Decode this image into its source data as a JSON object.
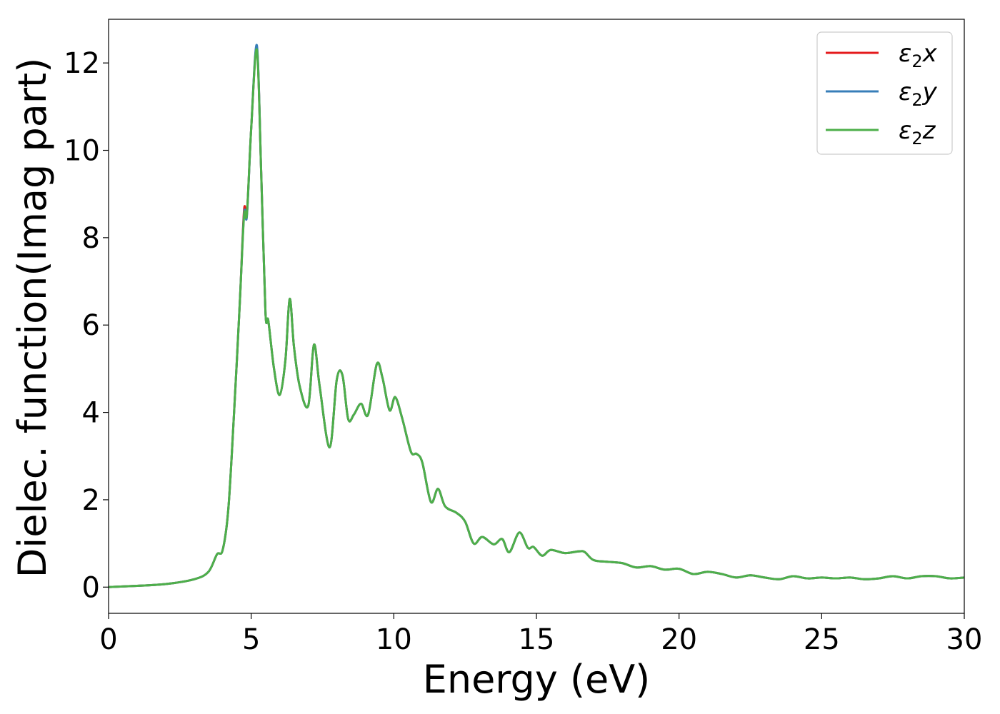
{
  "chart_data": {
    "type": "line",
    "title": "",
    "xlabel": "Energy (eV)",
    "ylabel": "Dielec. function(Imag part)",
    "xlim": [
      0,
      30
    ],
    "ylim": [
      -0.6,
      13
    ],
    "xticks": [
      0,
      5,
      10,
      15,
      20,
      25,
      30
    ],
    "yticks": [
      0,
      2,
      4,
      6,
      8,
      10,
      12
    ],
    "grid": false,
    "legend_position": "top-right",
    "series": [
      {
        "name": "ε₂x",
        "legend_base": "ε",
        "legend_sub": "2",
        "legend_var": "x",
        "color": "#e41a1c",
        "points": [
          [
            0,
            0
          ],
          [
            1,
            0.03
          ],
          [
            2,
            0.07
          ],
          [
            3,
            0.18
          ],
          [
            3.5,
            0.35
          ],
          [
            3.8,
            0.75
          ],
          [
            4.0,
            0.85
          ],
          [
            4.2,
            1.8
          ],
          [
            4.4,
            4.0
          ],
          [
            4.6,
            6.5
          ],
          [
            4.75,
            8.63
          ],
          [
            4.85,
            8.55
          ],
          [
            5.0,
            10.5
          ],
          [
            5.2,
            12.35
          ],
          [
            5.35,
            9.5
          ],
          [
            5.5,
            6.3
          ],
          [
            5.6,
            6.1
          ],
          [
            5.8,
            5.0
          ],
          [
            6.0,
            4.4
          ],
          [
            6.2,
            5.2
          ],
          [
            6.35,
            6.6
          ],
          [
            6.5,
            5.5
          ],
          [
            6.7,
            4.6
          ],
          [
            7.0,
            4.15
          ],
          [
            7.2,
            5.55
          ],
          [
            7.4,
            4.6
          ],
          [
            7.75,
            3.2
          ],
          [
            8.0,
            4.75
          ],
          [
            8.2,
            4.85
          ],
          [
            8.4,
            3.85
          ],
          [
            8.6,
            3.95
          ],
          [
            8.85,
            4.2
          ],
          [
            9.1,
            3.95
          ],
          [
            9.4,
            5.1
          ],
          [
            9.6,
            4.8
          ],
          [
            9.85,
            4.05
          ],
          [
            10.05,
            4.35
          ],
          [
            10.3,
            3.85
          ],
          [
            10.6,
            3.1
          ],
          [
            10.8,
            3.05
          ],
          [
            11.0,
            2.85
          ],
          [
            11.3,
            1.95
          ],
          [
            11.55,
            2.25
          ],
          [
            11.8,
            1.85
          ],
          [
            12.2,
            1.7
          ],
          [
            12.5,
            1.5
          ],
          [
            12.8,
            1.0
          ],
          [
            13.1,
            1.15
          ],
          [
            13.5,
            0.98
          ],
          [
            13.8,
            1.1
          ],
          [
            14.05,
            0.8
          ],
          [
            14.4,
            1.25
          ],
          [
            14.7,
            0.9
          ],
          [
            14.9,
            0.92
          ],
          [
            15.2,
            0.72
          ],
          [
            15.5,
            0.85
          ],
          [
            16.0,
            0.78
          ],
          [
            16.5,
            0.82
          ],
          [
            16.7,
            0.8
          ],
          [
            17.0,
            0.62
          ],
          [
            17.5,
            0.58
          ],
          [
            18.0,
            0.55
          ],
          [
            18.5,
            0.45
          ],
          [
            19.0,
            0.48
          ],
          [
            19.5,
            0.4
          ],
          [
            20.0,
            0.42
          ],
          [
            20.5,
            0.3
          ],
          [
            21.0,
            0.35
          ],
          [
            21.5,
            0.3
          ],
          [
            22.0,
            0.22
          ],
          [
            22.5,
            0.27
          ],
          [
            23.0,
            0.22
          ],
          [
            23.5,
            0.18
          ],
          [
            24.0,
            0.25
          ],
          [
            24.5,
            0.2
          ],
          [
            25.0,
            0.22
          ],
          [
            25.5,
            0.2
          ],
          [
            26.0,
            0.22
          ],
          [
            26.5,
            0.18
          ],
          [
            27.0,
            0.2
          ],
          [
            27.5,
            0.25
          ],
          [
            28.0,
            0.2
          ],
          [
            28.5,
            0.25
          ],
          [
            29.0,
            0.25
          ],
          [
            29.5,
            0.2
          ],
          [
            30.0,
            0.22
          ]
        ]
      },
      {
        "name": "ε₂y",
        "legend_base": "ε",
        "legend_sub": "2",
        "legend_var": "y",
        "color": "#377eb8",
        "points": [
          [
            0,
            0
          ],
          [
            1,
            0.03
          ],
          [
            2,
            0.07
          ],
          [
            3,
            0.18
          ],
          [
            3.5,
            0.35
          ],
          [
            3.8,
            0.75
          ],
          [
            4.0,
            0.85
          ],
          [
            4.2,
            1.8
          ],
          [
            4.4,
            4.0
          ],
          [
            4.6,
            6.5
          ],
          [
            4.75,
            8.55
          ],
          [
            4.85,
            8.5
          ],
          [
            5.0,
            10.5
          ],
          [
            5.2,
            12.4
          ],
          [
            5.35,
            9.5
          ],
          [
            5.5,
            6.3
          ],
          [
            5.6,
            6.1
          ],
          [
            5.8,
            5.0
          ],
          [
            6.0,
            4.4
          ],
          [
            6.2,
            5.2
          ],
          [
            6.35,
            6.6
          ],
          [
            6.5,
            5.5
          ],
          [
            6.7,
            4.6
          ],
          [
            7.0,
            4.15
          ],
          [
            7.2,
            5.55
          ],
          [
            7.4,
            4.6
          ],
          [
            7.75,
            3.2
          ],
          [
            8.0,
            4.75
          ],
          [
            8.2,
            4.85
          ],
          [
            8.4,
            3.85
          ],
          [
            8.6,
            3.95
          ],
          [
            8.85,
            4.2
          ],
          [
            9.1,
            3.95
          ],
          [
            9.4,
            5.1
          ],
          [
            9.6,
            4.8
          ],
          [
            9.85,
            4.05
          ],
          [
            10.05,
            4.35
          ],
          [
            10.3,
            3.85
          ],
          [
            10.6,
            3.1
          ],
          [
            10.8,
            3.05
          ],
          [
            11.0,
            2.85
          ],
          [
            11.3,
            1.95
          ],
          [
            11.55,
            2.25
          ],
          [
            11.8,
            1.85
          ],
          [
            12.2,
            1.7
          ],
          [
            12.5,
            1.5
          ],
          [
            12.8,
            1.0
          ],
          [
            13.1,
            1.15
          ],
          [
            13.5,
            0.98
          ],
          [
            13.8,
            1.1
          ],
          [
            14.05,
            0.8
          ],
          [
            14.4,
            1.25
          ],
          [
            14.7,
            0.9
          ],
          [
            14.9,
            0.92
          ],
          [
            15.2,
            0.72
          ],
          [
            15.5,
            0.85
          ],
          [
            16.0,
            0.78
          ],
          [
            16.5,
            0.82
          ],
          [
            16.7,
            0.8
          ],
          [
            17.0,
            0.62
          ],
          [
            17.5,
            0.58
          ],
          [
            18.0,
            0.55
          ],
          [
            18.5,
            0.45
          ],
          [
            19.0,
            0.48
          ],
          [
            19.5,
            0.4
          ],
          [
            20.0,
            0.42
          ],
          [
            20.5,
            0.3
          ],
          [
            21.0,
            0.35
          ],
          [
            21.5,
            0.3
          ],
          [
            22.0,
            0.22
          ],
          [
            22.5,
            0.27
          ],
          [
            23.0,
            0.22
          ],
          [
            23.5,
            0.18
          ],
          [
            24.0,
            0.25
          ],
          [
            24.5,
            0.2
          ],
          [
            25.0,
            0.22
          ],
          [
            25.5,
            0.2
          ],
          [
            26.0,
            0.22
          ],
          [
            26.5,
            0.18
          ],
          [
            27.0,
            0.2
          ],
          [
            27.5,
            0.25
          ],
          [
            28.0,
            0.2
          ],
          [
            28.5,
            0.25
          ],
          [
            29.0,
            0.25
          ],
          [
            29.5,
            0.2
          ],
          [
            30.0,
            0.22
          ]
        ]
      },
      {
        "name": "ε₂z",
        "legend_base": "ε",
        "legend_sub": "2",
        "legend_var": "z",
        "color": "#4daf4a",
        "points": [
          [
            0,
            0
          ],
          [
            1,
            0.03
          ],
          [
            2,
            0.07
          ],
          [
            3,
            0.18
          ],
          [
            3.5,
            0.35
          ],
          [
            3.8,
            0.75
          ],
          [
            4.0,
            0.85
          ],
          [
            4.2,
            1.8
          ],
          [
            4.4,
            4.0
          ],
          [
            4.6,
            6.5
          ],
          [
            4.75,
            8.5
          ],
          [
            4.85,
            8.55
          ],
          [
            5.0,
            10.5
          ],
          [
            5.2,
            12.3
          ],
          [
            5.35,
            9.5
          ],
          [
            5.5,
            6.3
          ],
          [
            5.6,
            6.1
          ],
          [
            5.8,
            5.0
          ],
          [
            6.0,
            4.4
          ],
          [
            6.2,
            5.2
          ],
          [
            6.35,
            6.6
          ],
          [
            6.5,
            5.5
          ],
          [
            6.7,
            4.6
          ],
          [
            7.0,
            4.15
          ],
          [
            7.2,
            5.55
          ],
          [
            7.4,
            4.6
          ],
          [
            7.75,
            3.2
          ],
          [
            8.0,
            4.75
          ],
          [
            8.2,
            4.85
          ],
          [
            8.4,
            3.85
          ],
          [
            8.6,
            3.95
          ],
          [
            8.85,
            4.2
          ],
          [
            9.1,
            3.95
          ],
          [
            9.4,
            5.1
          ],
          [
            9.6,
            4.8
          ],
          [
            9.85,
            4.05
          ],
          [
            10.05,
            4.35
          ],
          [
            10.3,
            3.85
          ],
          [
            10.6,
            3.1
          ],
          [
            10.8,
            3.05
          ],
          [
            11.0,
            2.85
          ],
          [
            11.3,
            1.95
          ],
          [
            11.55,
            2.25
          ],
          [
            11.8,
            1.85
          ],
          [
            12.2,
            1.7
          ],
          [
            12.5,
            1.5
          ],
          [
            12.8,
            1.0
          ],
          [
            13.1,
            1.15
          ],
          [
            13.5,
            0.98
          ],
          [
            13.8,
            1.1
          ],
          [
            14.05,
            0.8
          ],
          [
            14.4,
            1.25
          ],
          [
            14.7,
            0.9
          ],
          [
            14.9,
            0.92
          ],
          [
            15.2,
            0.72
          ],
          [
            15.5,
            0.85
          ],
          [
            16.0,
            0.78
          ],
          [
            16.5,
            0.82
          ],
          [
            16.7,
            0.8
          ],
          [
            17.0,
            0.62
          ],
          [
            17.5,
            0.58
          ],
          [
            18.0,
            0.55
          ],
          [
            18.5,
            0.45
          ],
          [
            19.0,
            0.48
          ],
          [
            19.5,
            0.4
          ],
          [
            20.0,
            0.42
          ],
          [
            20.5,
            0.3
          ],
          [
            21.0,
            0.35
          ],
          [
            21.5,
            0.3
          ],
          [
            22.0,
            0.22
          ],
          [
            22.5,
            0.27
          ],
          [
            23.0,
            0.22
          ],
          [
            23.5,
            0.18
          ],
          [
            24.0,
            0.25
          ],
          [
            24.5,
            0.2
          ],
          [
            25.0,
            0.22
          ],
          [
            25.5,
            0.2
          ],
          [
            26.0,
            0.22
          ],
          [
            26.5,
            0.18
          ],
          [
            27.0,
            0.2
          ],
          [
            27.5,
            0.25
          ],
          [
            28.0,
            0.2
          ],
          [
            28.5,
            0.25
          ],
          [
            29.0,
            0.25
          ],
          [
            29.5,
            0.2
          ],
          [
            30.0,
            0.22
          ]
        ]
      }
    ]
  }
}
